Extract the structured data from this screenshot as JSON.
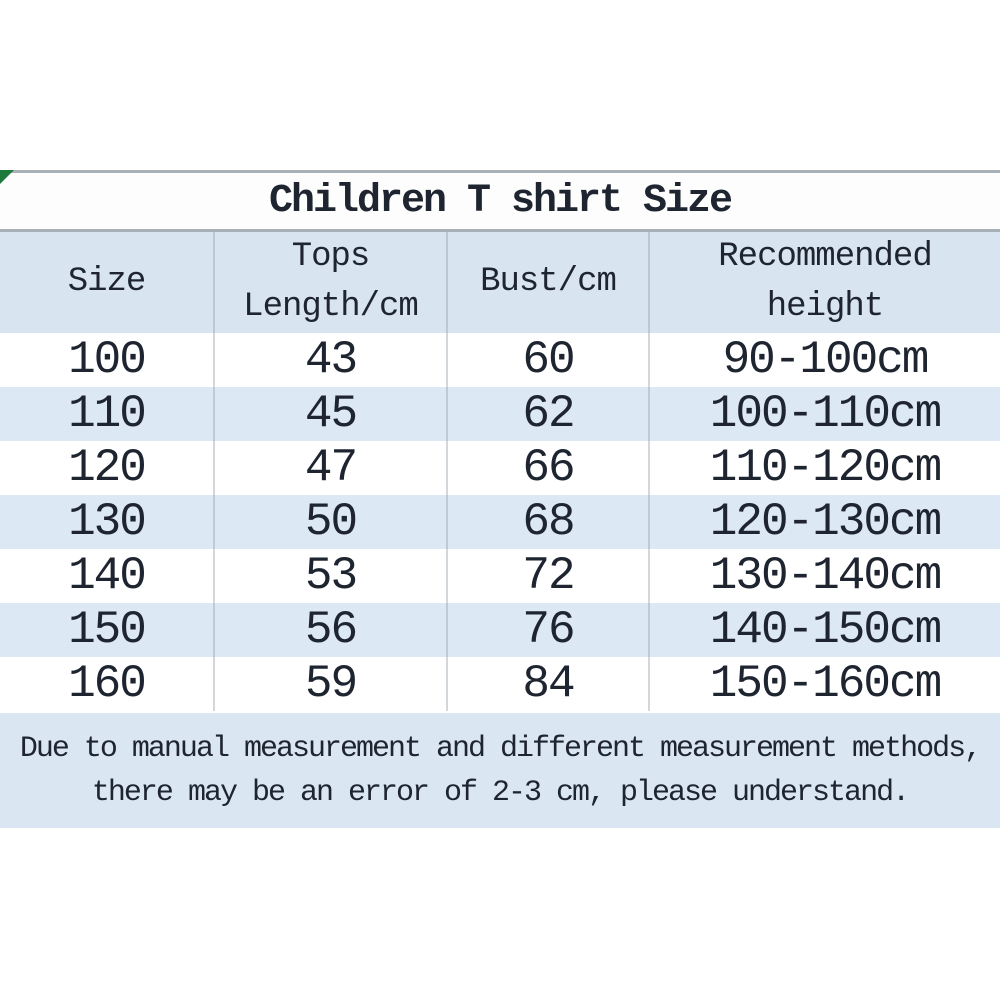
{
  "chart_data": {
    "type": "table",
    "title": "Children T shirt Size",
    "columns": [
      {
        "label_line1": "Size",
        "label_line2": ""
      },
      {
        "label_line1": "Tops",
        "label_line2": "Length/cm"
      },
      {
        "label_line1": "Bust/cm",
        "label_line2": ""
      },
      {
        "label_line1": "Recommended",
        "label_line2": "height"
      }
    ],
    "rows": [
      {
        "size": "100",
        "tops_length_cm": "43",
        "bust_cm": "60",
        "recommended_height": "90-100cm"
      },
      {
        "size": "110",
        "tops_length_cm": "45",
        "bust_cm": "62",
        "recommended_height": "100-110cm"
      },
      {
        "size": "120",
        "tops_length_cm": "47",
        "bust_cm": "66",
        "recommended_height": "110-120cm"
      },
      {
        "size": "130",
        "tops_length_cm": "50",
        "bust_cm": "68",
        "recommended_height": "120-130cm"
      },
      {
        "size": "140",
        "tops_length_cm": "53",
        "bust_cm": "72",
        "recommended_height": "130-140cm"
      },
      {
        "size": "150",
        "tops_length_cm": "56",
        "bust_cm": "76",
        "recommended_height": "140-150cm"
      },
      {
        "size": "160",
        "tops_length_cm": "59",
        "bust_cm": "84",
        "recommended_height": "150-160cm"
      }
    ],
    "note_line1": "Due to manual measurement and different measurement methods,",
    "note_line2": "there may be an error of 2-3 cm, please understand.",
    "layout_hints": {
      "row_striping": "white and light blue alternating",
      "all_cells_centered": true
    }
  },
  "colors": {
    "header_blue": "#d8e4f0",
    "row_alt_blue": "#dce8f4",
    "note_blue": "#dae6f2",
    "border_gray": "#a6b0b6",
    "column_divider_gray": "#c7d0d8",
    "text_dark": "#1e2530",
    "corner_marker_green": "#1d7a3a"
  }
}
